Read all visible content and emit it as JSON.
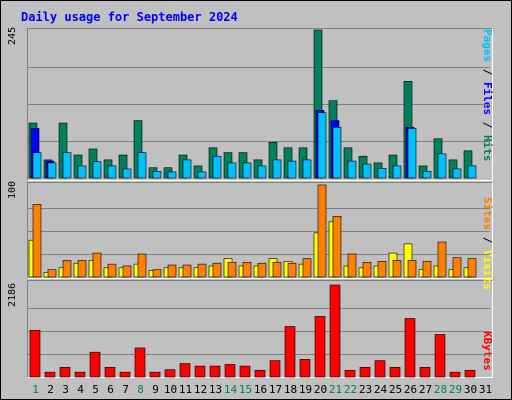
{
  "title": "Daily usage for September 2024",
  "colors": {
    "hits": "#00805c",
    "files": "#0000ff",
    "pages": "#00c0ff",
    "visits": "#ffff00",
    "sites": "#ff8000",
    "kbytes": "#ff0000",
    "weekend_label": "#00805c",
    "weekday_label": "#000000"
  },
  "chart_data": [
    {
      "type": "bar",
      "name": "top",
      "ymax_label": "245",
      "ylim": [
        0,
        245
      ],
      "legend": [
        "Pages",
        "Files",
        "Hits"
      ],
      "categories": [
        "1",
        "2",
        "3",
        "4",
        "5",
        "6",
        "7",
        "8",
        "9",
        "10",
        "11",
        "12",
        "13",
        "14",
        "15",
        "16",
        "17",
        "18",
        "19",
        "20",
        "21",
        "22",
        "23",
        "24",
        "25",
        "26",
        "27",
        "28",
        "29",
        "30",
        "31"
      ],
      "series": [
        {
          "name": "Hits",
          "values": [
            91,
            30,
            91,
            38,
            48,
            30,
            38,
            95,
            17,
            17,
            38,
            20,
            50,
            42,
            42,
            30,
            59,
            50,
            50,
            245,
            128,
            50,
            36,
            25,
            38,
            160,
            20,
            65,
            30,
            45,
            0
          ]
        },
        {
          "name": "Files",
          "values": [
            82,
            28,
            0,
            0,
            0,
            0,
            0,
            0,
            0,
            0,
            0,
            0,
            0,
            0,
            0,
            0,
            0,
            0,
            0,
            112,
            95,
            0,
            0,
            0,
            0,
            84,
            0,
            0,
            0,
            0,
            0
          ]
        },
        {
          "name": "Pages",
          "values": [
            42,
            25,
            42,
            20,
            27,
            20,
            15,
            42,
            11,
            10,
            30,
            10,
            36,
            25,
            25,
            20,
            30,
            28,
            30,
            108,
            84,
            28,
            23,
            16,
            20,
            82,
            11,
            40,
            15,
            20,
            0
          ]
        }
      ]
    },
    {
      "type": "bar",
      "name": "middle",
      "ymax_label": "100",
      "ylim": [
        0,
        100
      ],
      "legend": [
        "Sites",
        "Visits"
      ],
      "categories": [
        "1",
        "2",
        "3",
        "4",
        "5",
        "6",
        "7",
        "8",
        "9",
        "10",
        "11",
        "12",
        "13",
        "14",
        "15",
        "16",
        "17",
        "18",
        "19",
        "20",
        "21",
        "22",
        "23",
        "24",
        "25",
        "26",
        "27",
        "28",
        "29",
        "30",
        "31"
      ],
      "series": [
        {
          "name": "Visits",
          "values": [
            40,
            5,
            10,
            15,
            18,
            10,
            10,
            14,
            7,
            10,
            10,
            10,
            12,
            20,
            12,
            12,
            20,
            17,
            14,
            48,
            60,
            12,
            10,
            12,
            26,
            36,
            8,
            12,
            8,
            10,
            0
          ]
        },
        {
          "name": "Sites",
          "values": [
            79,
            8,
            18,
            18,
            26,
            14,
            12,
            25,
            8,
            13,
            13,
            14,
            15,
            16,
            16,
            15,
            16,
            15,
            20,
            100,
            66,
            25,
            16,
            17,
            18,
            18,
            17,
            38,
            21,
            20,
            0
          ]
        }
      ]
    },
    {
      "type": "bar",
      "name": "bottom",
      "ymax_label": "2186",
      "ylim": [
        0,
        2186
      ],
      "legend": [
        "KBytes"
      ],
      "categories": [
        "1",
        "2",
        "3",
        "4",
        "5",
        "6",
        "7",
        "8",
        "9",
        "10",
        "11",
        "12",
        "13",
        "14",
        "15",
        "16",
        "17",
        "18",
        "19",
        "20",
        "21",
        "22",
        "23",
        "24",
        "25",
        "26",
        "27",
        "28",
        "29",
        "30",
        "31"
      ],
      "series": [
        {
          "name": "KBytes",
          "values": [
            1110,
            115,
            230,
            115,
            590,
            230,
            115,
            690,
            115,
            175,
            320,
            260,
            260,
            300,
            260,
            160,
            390,
            1200,
            420,
            1440,
            2186,
            160,
            230,
            390,
            230,
            1390,
            230,
            1010,
            115,
            160,
            0
          ]
        }
      ]
    }
  ],
  "day_labels": [
    {
      "text": "1",
      "weekend": true
    },
    {
      "text": "2",
      "weekend": false
    },
    {
      "text": "3",
      "weekend": false
    },
    {
      "text": "4",
      "weekend": false
    },
    {
      "text": "5",
      "weekend": false
    },
    {
      "text": "6",
      "weekend": false
    },
    {
      "text": "7",
      "weekend": false
    },
    {
      "text": "8",
      "weekend": true
    },
    {
      "text": "9",
      "weekend": false
    },
    {
      "text": "10",
      "weekend": false
    },
    {
      "text": "11",
      "weekend": false
    },
    {
      "text": "12",
      "weekend": false
    },
    {
      "text": "13",
      "weekend": false
    },
    {
      "text": "14",
      "weekend": true
    },
    {
      "text": "15",
      "weekend": true
    },
    {
      "text": "16",
      "weekend": false
    },
    {
      "text": "17",
      "weekend": false
    },
    {
      "text": "18",
      "weekend": false
    },
    {
      "text": "19",
      "weekend": false
    },
    {
      "text": "20",
      "weekend": false
    },
    {
      "text": "21",
      "weekend": true
    },
    {
      "text": "22",
      "weekend": true
    },
    {
      "text": "23",
      "weekend": false
    },
    {
      "text": "24",
      "weekend": false
    },
    {
      "text": "25",
      "weekend": false
    },
    {
      "text": "26",
      "weekend": false
    },
    {
      "text": "27",
      "weekend": false
    },
    {
      "text": "28",
      "weekend": true
    },
    {
      "text": "29",
      "weekend": true
    },
    {
      "text": "30",
      "weekend": false
    },
    {
      "text": "31",
      "weekend": false
    }
  ],
  "right_labels": {
    "top": {
      "pages": "Pages",
      "sep1": " / ",
      "files": "Files",
      "sep2": " / ",
      "hits": "Hits"
    },
    "middle": {
      "sites": "Sites",
      "sep1": " / ",
      "visits": "Visits"
    },
    "bottom": {
      "kbytes": "KBytes"
    }
  }
}
